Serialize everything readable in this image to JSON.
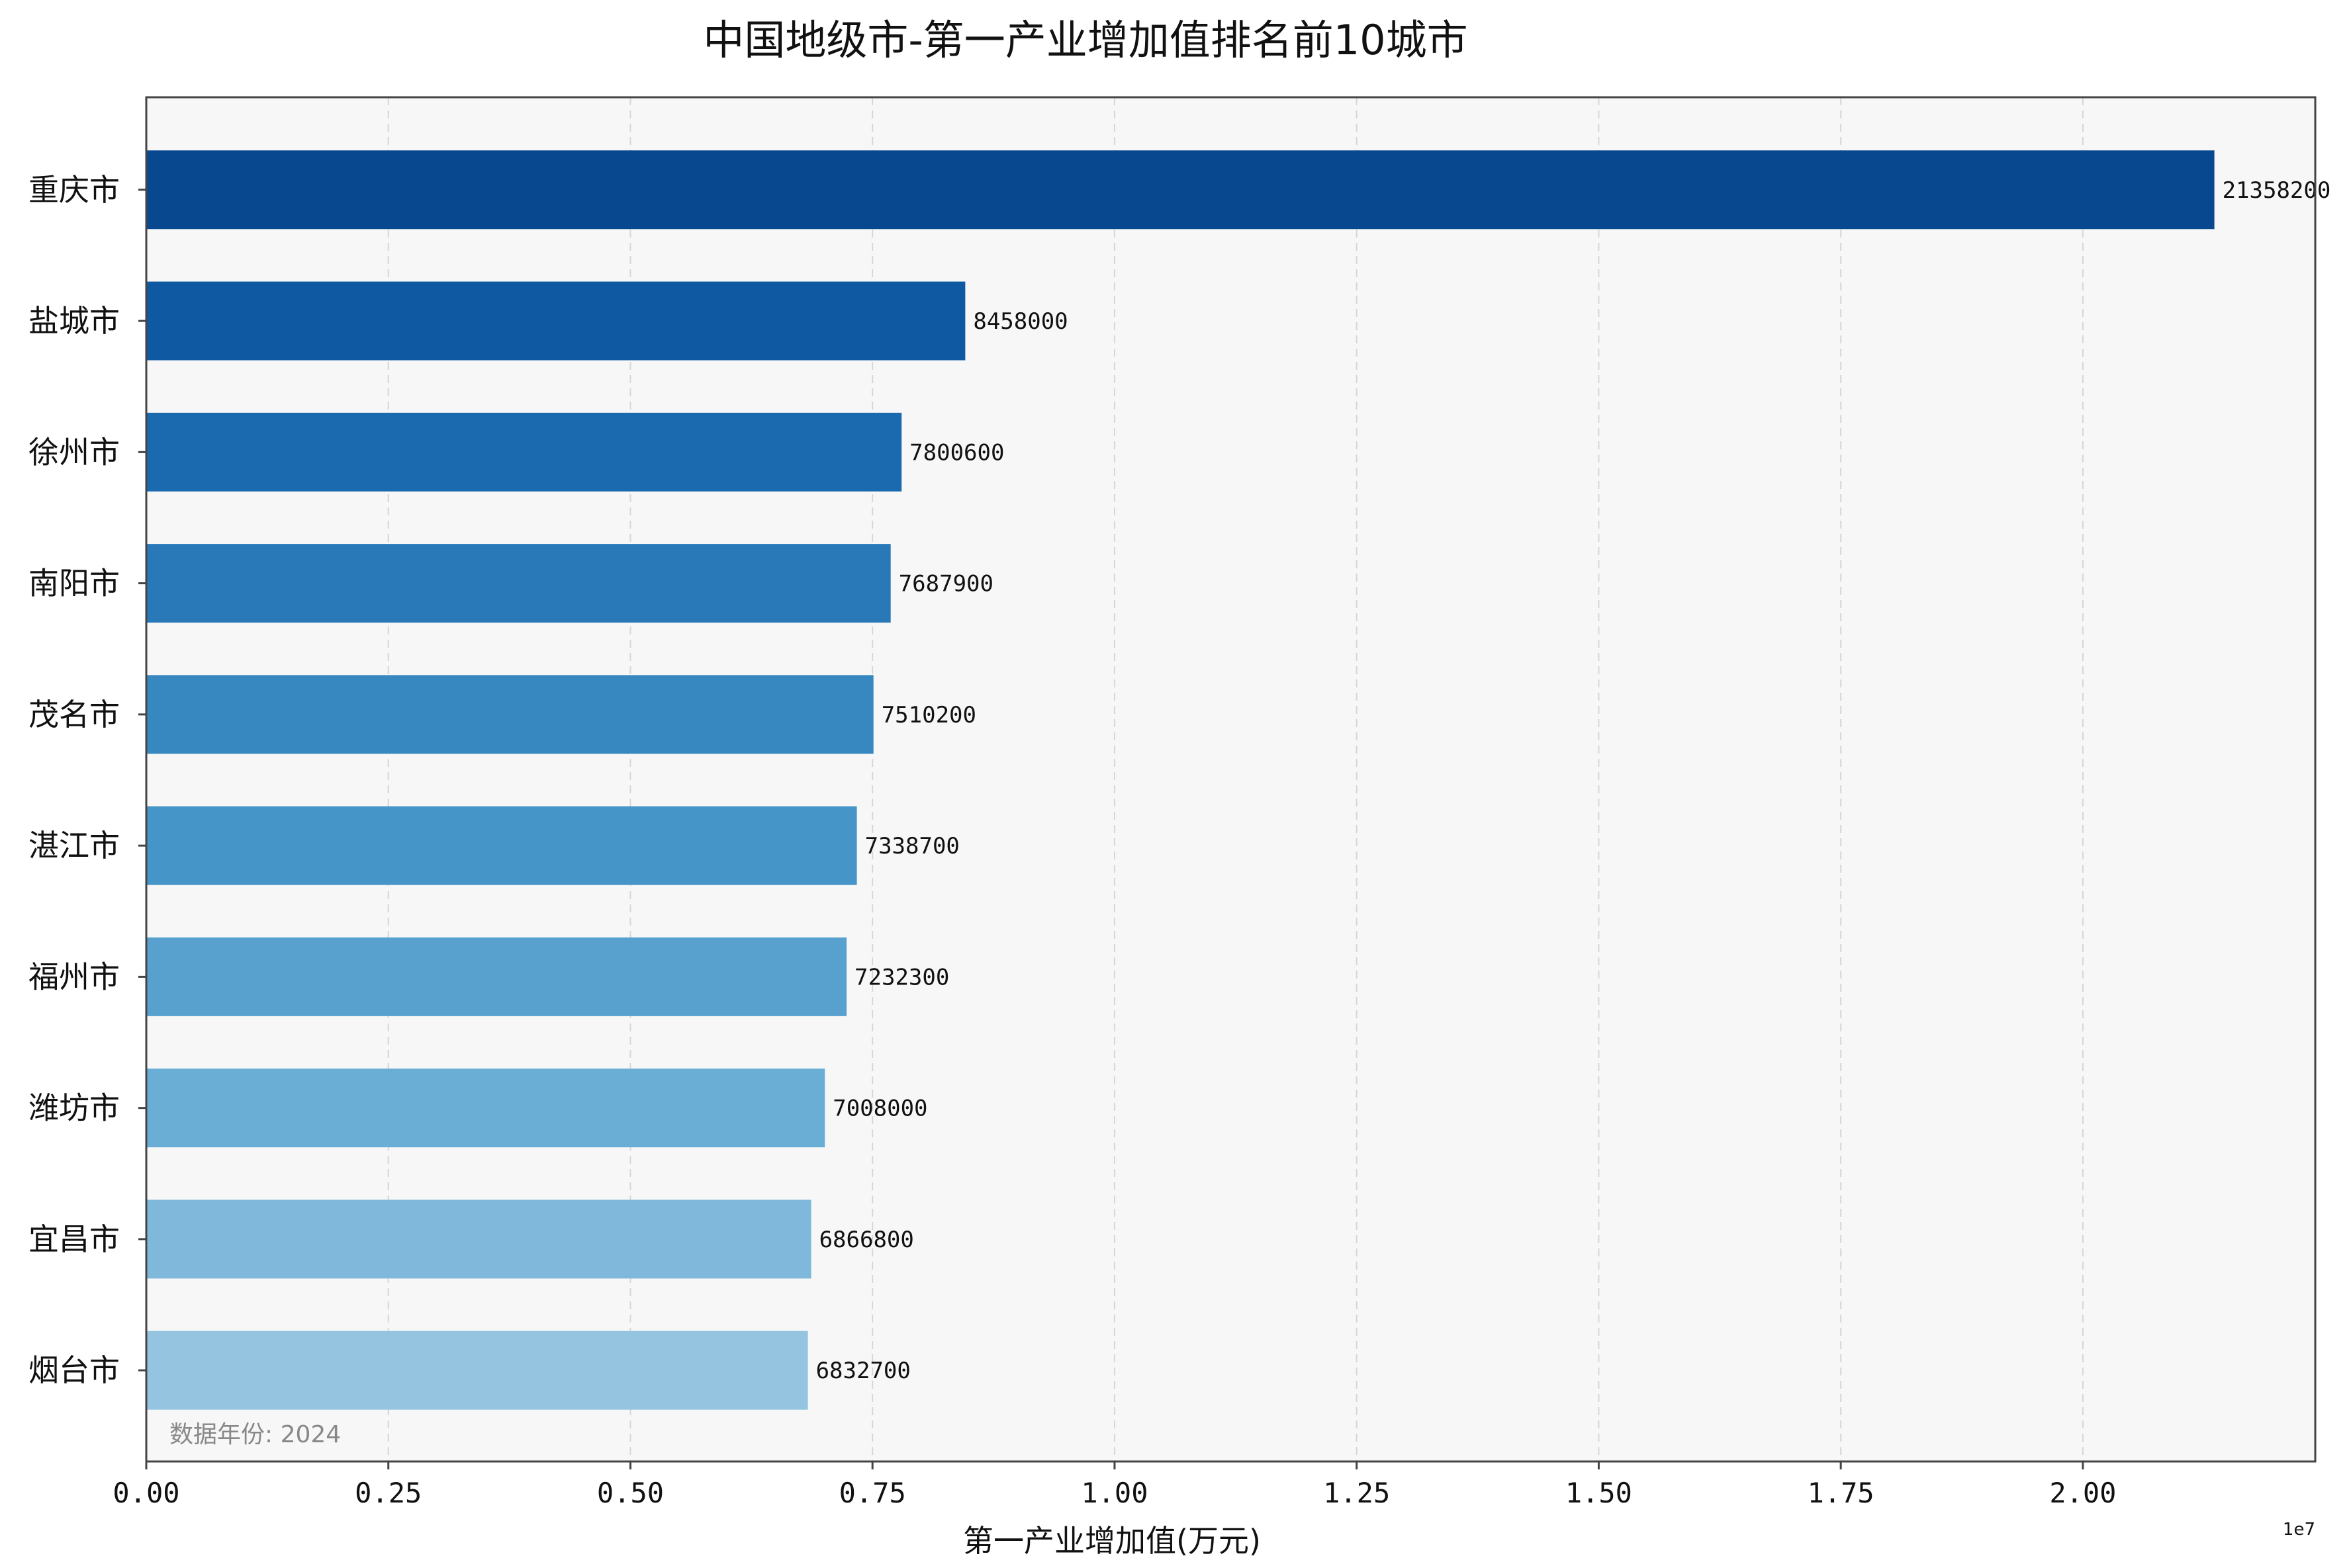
{
  "chart_data": {
    "type": "bar",
    "orientation": "horizontal",
    "title": "中国地级市-第一产业增加值排名前10城市",
    "xlabel": "第一产业增加值(万元)",
    "ylabel": "",
    "x_scale_note": "1e7",
    "xlim": [
      0,
      22400000
    ],
    "xticks": [
      0,
      2500000,
      5000000,
      7500000,
      10000000,
      12500000,
      15000000,
      17500000,
      20000000
    ],
    "xtick_labels": [
      "0.00",
      "0.25",
      "0.50",
      "0.75",
      "1.00",
      "1.25",
      "1.50",
      "1.75",
      "2.00"
    ],
    "grid": "x-dashed",
    "annotation": "数据年份: 2024",
    "categories": [
      "重庆市",
      "盐城市",
      "徐州市",
      "南阳市",
      "茂名市",
      "湛江市",
      "福州市",
      "潍坊市",
      "宜昌市",
      "烟台市"
    ],
    "values": [
      21358200,
      8458000,
      7800600,
      7687900,
      7510200,
      7338700,
      7232300,
      7008000,
      6866800,
      6832700
    ],
    "value_labels": [
      "21358200",
      "8458000",
      "7800600",
      "7687900",
      "7510200",
      "7338700",
      "7232300",
      "7008000",
      "6866800",
      "6832700"
    ],
    "colors": [
      "#08488e",
      "#0f59a3",
      "#1b69af",
      "#2979b9",
      "#3787c0",
      "#4695c8",
      "#58a1cf",
      "#6aaed6",
      "#7fb8da",
      "#94c4df"
    ]
  }
}
